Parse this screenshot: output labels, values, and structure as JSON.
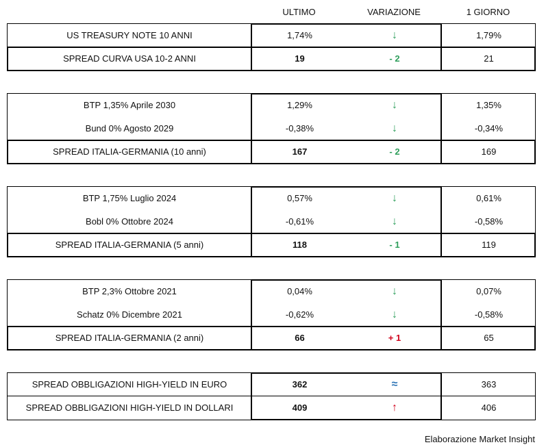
{
  "headers": {
    "ultimo": "ULTIMO",
    "variazione": "VARIAZIONE",
    "giorno": "1 GIORNO"
  },
  "colors": {
    "down": "#2e9e5b",
    "up": "#d0021b",
    "flat": "#2e75b6"
  },
  "blocks": [
    {
      "rows": [
        {
          "label": "US TREASURY NOTE 10 ANNI",
          "ultimo": "1,74%",
          "variazione": "↓",
          "var_type": "down",
          "giorno": "1,79%",
          "spread": false
        },
        {
          "label": "SPREAD CURVA USA 10-2 ANNI",
          "ultimo": "19",
          "variazione": "- 2",
          "var_type": "down",
          "giorno": "21",
          "spread": true
        }
      ]
    },
    {
      "rows": [
        {
          "label": "BTP 1,35% Aprile 2030",
          "ultimo": "1,29%",
          "variazione": "↓",
          "var_type": "down",
          "giorno": "1,35%",
          "spread": false
        },
        {
          "label": "Bund 0% Agosto 2029",
          "ultimo": "-0,38%",
          "variazione": "↓",
          "var_type": "down",
          "giorno": "-0,34%",
          "spread": false
        },
        {
          "label": "SPREAD ITALIA-GERMANIA (10 anni)",
          "ultimo": "167",
          "variazione": "- 2",
          "var_type": "down",
          "giorno": "169",
          "spread": true
        }
      ]
    },
    {
      "rows": [
        {
          "label": "BTP 1,75% Luglio 2024",
          "ultimo": "0,57%",
          "variazione": "↓",
          "var_type": "down",
          "giorno": "0,61%",
          "spread": false
        },
        {
          "label": "Bobl 0% Ottobre 2024",
          "ultimo": "-0,61%",
          "variazione": "↓",
          "var_type": "down",
          "giorno": "-0,58%",
          "spread": false
        },
        {
          "label": "SPREAD ITALIA-GERMANIA (5 anni)",
          "ultimo": "118",
          "variazione": "- 1",
          "var_type": "down",
          "giorno": "119",
          "spread": true
        }
      ]
    },
    {
      "rows": [
        {
          "label": "BTP 2,3% Ottobre 2021",
          "ultimo": "0,04%",
          "variazione": "↓",
          "var_type": "down",
          "giorno": "0,07%",
          "spread": false
        },
        {
          "label": "Schatz 0% Dicembre 2021",
          "ultimo": "-0,62%",
          "variazione": "↓",
          "var_type": "down",
          "giorno": "-0,58%",
          "spread": false
        },
        {
          "label": "SPREAD ITALIA-GERMANIA (2 anni)",
          "ultimo": "66",
          "variazione": "+ 1",
          "var_type": "up",
          "giorno": "65",
          "spread": true
        }
      ]
    },
    {
      "hy": true,
      "rows": [
        {
          "label": "SPREAD OBBLIGAZIONI HIGH-YIELD IN EURO",
          "ultimo": "362",
          "variazione": "≈",
          "var_type": "flat",
          "giorno": "363",
          "spread": false,
          "bold_value": true
        },
        {
          "label": "SPREAD OBBLIGAZIONI HIGH-YIELD IN DOLLARI",
          "ultimo": "409",
          "variazione": "↑",
          "var_type": "up",
          "giorno": "406",
          "spread": false,
          "bold_value": true
        }
      ]
    }
  ],
  "footer": "Elaborazione Market Insight"
}
